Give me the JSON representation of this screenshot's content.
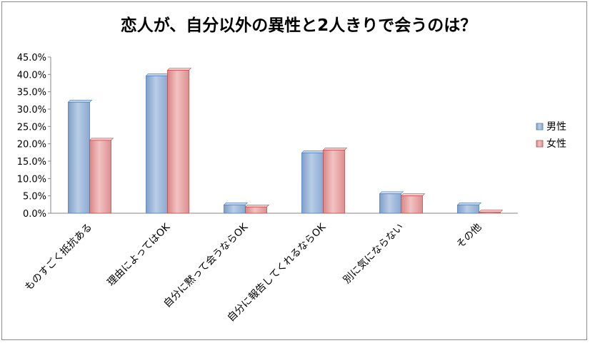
{
  "chart_data": {
    "type": "bar",
    "title": "恋人が、自分以外の異性と2人きりで会うのは？",
    "xlabel": "",
    "ylabel": "",
    "categories": [
      "ものすごく抵抗ある",
      "理由によってはOK",
      "自分に黙って会うならOK",
      "自分に報告してくれるならOK",
      "別に気にならない",
      "その他"
    ],
    "series": [
      {
        "name": "男性",
        "values": [
          32.0,
          39.6,
          2.4,
          17.4,
          5.6,
          2.4
        ]
      },
      {
        "name": "女性",
        "values": [
          21.0,
          41.2,
          1.8,
          18.2,
          5.0,
          0.3
        ]
      }
    ],
    "ylim": [
      0,
      45
    ],
    "yticks": [
      "0.0%",
      "5.0%",
      "10.0%",
      "15.0%",
      "20.0%",
      "25.0%",
      "30.0%",
      "35.0%",
      "40.0%",
      "45.0%"
    ],
    "value_format": "percent",
    "grid": false,
    "legend_position": "right",
    "colors": {
      "男性": "#95b3d7",
      "女性": "#e6a0a0",
      "男性_edge": "#4f81bd",
      "女性_edge": "#c0504d"
    }
  }
}
